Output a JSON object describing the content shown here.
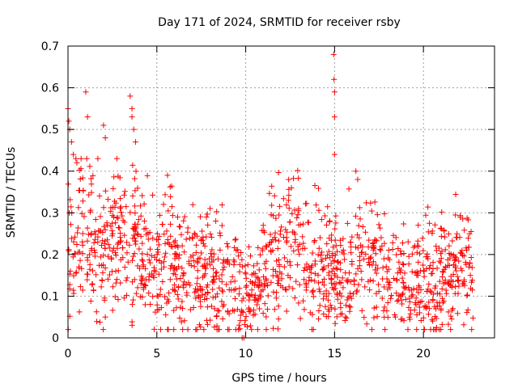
{
  "chart_data": {
    "type": "scatter",
    "title": "Day 171 of 2024, SRMTID for receiver rsby",
    "xlabel": "GPS time / hours",
    "ylabel": "SRMTID / TECUs",
    "xlim": [
      0,
      24
    ],
    "ylim": [
      0,
      0.7
    ],
    "x_ticks": [
      0,
      5,
      10,
      15,
      20
    ],
    "x_tick_labels": [
      "0",
      "5",
      "10",
      "15",
      "20"
    ],
    "y_ticks": [
      0,
      0.1,
      0.2,
      0.3,
      0.4,
      0.5,
      0.6,
      0.7
    ],
    "y_tick_labels": [
      "0",
      "0.1",
      "0.2",
      "0.3",
      "0.4",
      "0.5",
      "0.6",
      "0.7"
    ],
    "grid": true,
    "marker": "plus",
    "color": "#ff0000",
    "series": [
      {
        "name": "SRMTID",
        "x_range_hours": [
          0,
          22.8
        ],
        "baseline_profile": [
          {
            "x": 0.0,
            "y": 0.25
          },
          {
            "x": 1.0,
            "y": 0.22
          },
          {
            "x": 2.0,
            "y": 0.21
          },
          {
            "x": 3.0,
            "y": 0.24
          },
          {
            "x": 3.6,
            "y": 0.26
          },
          {
            "x": 4.5,
            "y": 0.18
          },
          {
            "x": 5.5,
            "y": 0.17
          },
          {
            "x": 6.5,
            "y": 0.15
          },
          {
            "x": 7.5,
            "y": 0.14
          },
          {
            "x": 8.5,
            "y": 0.14
          },
          {
            "x": 9.5,
            "y": 0.12
          },
          {
            "x": 10.0,
            "y": 0.09
          },
          {
            "x": 10.5,
            "y": 0.11
          },
          {
            "x": 11.5,
            "y": 0.2
          },
          {
            "x": 12.5,
            "y": 0.22
          },
          {
            "x": 13.5,
            "y": 0.18
          },
          {
            "x": 14.5,
            "y": 0.17
          },
          {
            "x": 15.5,
            "y": 0.13
          },
          {
            "x": 16.5,
            "y": 0.18
          },
          {
            "x": 17.5,
            "y": 0.16
          },
          {
            "x": 18.5,
            "y": 0.13
          },
          {
            "x": 19.5,
            "y": 0.11
          },
          {
            "x": 20.5,
            "y": 0.14
          },
          {
            "x": 21.5,
            "y": 0.15
          },
          {
            "x": 22.8,
            "y": 0.16
          }
        ],
        "notable_points": [
          {
            "x": 0.0,
            "y": 0.55
          },
          {
            "x": 0.05,
            "y": 0.52
          },
          {
            "x": 0.1,
            "y": 0.5
          },
          {
            "x": 0.2,
            "y": 0.47
          },
          {
            "x": 0.3,
            "y": 0.44
          },
          {
            "x": 0.5,
            "y": 0.42
          },
          {
            "x": 1.0,
            "y": 0.59
          },
          {
            "x": 1.1,
            "y": 0.53
          },
          {
            "x": 2.0,
            "y": 0.51
          },
          {
            "x": 2.1,
            "y": 0.48
          },
          {
            "x": 2.1,
            "y": 0.05
          },
          {
            "x": 3.5,
            "y": 0.58
          },
          {
            "x": 3.6,
            "y": 0.55
          },
          {
            "x": 3.6,
            "y": 0.53
          },
          {
            "x": 3.7,
            "y": 0.5
          },
          {
            "x": 3.8,
            "y": 0.47
          },
          {
            "x": 5.6,
            "y": 0.39
          },
          {
            "x": 9.8,
            "y": 0.0
          },
          {
            "x": 9.9,
            "y": 0.0
          },
          {
            "x": 14.95,
            "y": 0.68
          },
          {
            "x": 14.97,
            "y": 0.62
          },
          {
            "x": 15.0,
            "y": 0.59
          },
          {
            "x": 15.0,
            "y": 0.53
          },
          {
            "x": 15.0,
            "y": 0.44
          },
          {
            "x": 16.2,
            "y": 0.4
          },
          {
            "x": 16.3,
            "y": 0.38
          }
        ]
      }
    ]
  }
}
